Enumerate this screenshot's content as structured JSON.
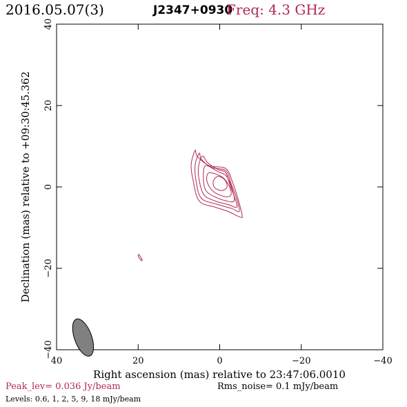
{
  "header": {
    "date": "2016.05.07(3)",
    "source": "J2347+0930",
    "freq": "Freq: 4.3 GHz"
  },
  "footer": {
    "peak": "Peak_lev=  0.036 Jy/beam",
    "rms": "Rms_noise=   0.1 mJy/beam",
    "levels": "Levels: 0.6,    1,    2,    5,    9,   18 mJy/beam"
  },
  "colors": {
    "contour": "#b0284f",
    "beam": "#808080",
    "accent": "#b0284f"
  },
  "chart_data": {
    "type": "contour",
    "xlabel": "Right ascension (mas) relative to 23:47:06.0010",
    "ylabel": "Declination (mas) relative to +09:30:45.362",
    "xlim": [
      40,
      -40
    ],
    "ylim": [
      -40,
      40
    ],
    "x_ticks": [
      40,
      20,
      0,
      -20,
      -40
    ],
    "y_ticks": [
      -40,
      -20,
      0,
      20,
      40
    ],
    "x_tick_labels": [
      "40",
      "20",
      "0",
      "−20",
      "−40"
    ],
    "y_tick_labels": [
      "−40",
      "−20",
      "0",
      "20",
      "40"
    ],
    "levels_mJy_per_beam": [
      0.6,
      1,
      2,
      5,
      9,
      18
    ],
    "peak_Jy_per_beam": 0.036,
    "rms_noise_mJy_per_beam": 0.1,
    "contours": [
      {
        "level": 0.6,
        "points": [
          [
            6.0,
            9.0
          ],
          [
            5.5,
            7.5
          ],
          [
            2.5,
            5.2
          ],
          [
            -1.5,
            4.5
          ],
          [
            -3.2,
            1.0
          ],
          [
            -4.5,
            -3.0
          ],
          [
            -5.5,
            -7.0
          ],
          [
            -5.0,
            -7.4
          ],
          [
            -2.0,
            -6.0
          ],
          [
            1.0,
            -5.0
          ],
          [
            5.0,
            -3.5
          ],
          [
            6.5,
            1.5
          ],
          [
            7.0,
            5.5
          ]
        ]
      },
      {
        "level": 1,
        "points": [
          [
            5.0,
            8.3
          ],
          [
            4.5,
            6.8
          ],
          [
            2.0,
            4.8
          ],
          [
            -1.5,
            4.0
          ],
          [
            -2.8,
            0.8
          ],
          [
            -4.2,
            -3.0
          ],
          [
            -4.8,
            -6.0
          ],
          [
            -3.0,
            -5.3
          ],
          [
            0.5,
            -4.3
          ],
          [
            4.5,
            -2.8
          ],
          [
            5.8,
            1.5
          ],
          [
            6.0,
            5.5
          ]
        ]
      },
      {
        "level": 2,
        "points": [
          [
            4.2,
            7.6
          ],
          [
            3.0,
            6.0
          ],
          [
            0.5,
            4.3
          ],
          [
            -1.5,
            3.5
          ],
          [
            -2.5,
            0.5
          ],
          [
            -3.8,
            -3.0
          ],
          [
            -4.2,
            -5.0
          ],
          [
            -2.0,
            -4.3
          ],
          [
            1.0,
            -3.5
          ],
          [
            3.8,
            -2.0
          ],
          [
            5.0,
            1.5
          ],
          [
            5.2,
            5.0
          ]
        ]
      },
      {
        "level": 5,
        "points": [
          [
            3.5,
            5.2
          ],
          [
            0.5,
            3.8
          ],
          [
            -1.8,
            2.5
          ],
          [
            -3.2,
            -1.0
          ],
          [
            -3.5,
            -3.5
          ],
          [
            -1.5,
            -3.4
          ],
          [
            1.0,
            -2.5
          ],
          [
            3.3,
            -1.0
          ],
          [
            4.0,
            2.0
          ]
        ]
      },
      {
        "level": 9,
        "points": [
          [
            2.5,
            3.5
          ],
          [
            -0.5,
            2.5
          ],
          [
            -2.2,
            0.5
          ],
          [
            -2.8,
            -1.8
          ],
          [
            -1.5,
            -2.4
          ],
          [
            1.0,
            -1.5
          ],
          [
            2.5,
            0.0
          ],
          [
            3.2,
            2.0
          ]
        ]
      },
      {
        "level": 18,
        "points": [
          [
            0.5,
            2.6
          ],
          [
            -1.2,
            1.8
          ],
          [
            -1.8,
            0.0
          ],
          [
            -0.5,
            -0.9
          ],
          [
            1.2,
            -0.2
          ],
          [
            1.6,
            1.3
          ]
        ]
      },
      {
        "level": 0.6,
        "points": [
          [
            19.8,
            -16.6
          ],
          [
            19.4,
            -17.2
          ],
          [
            19.0,
            -17.9
          ],
          [
            19.2,
            -18.1
          ],
          [
            19.7,
            -17.5
          ],
          [
            20.0,
            -16.8
          ]
        ]
      }
    ],
    "beam": {
      "x": 33.5,
      "y": -37,
      "major_mas": 4.8,
      "minor_mas": 2.1,
      "pa_deg": -20
    }
  }
}
